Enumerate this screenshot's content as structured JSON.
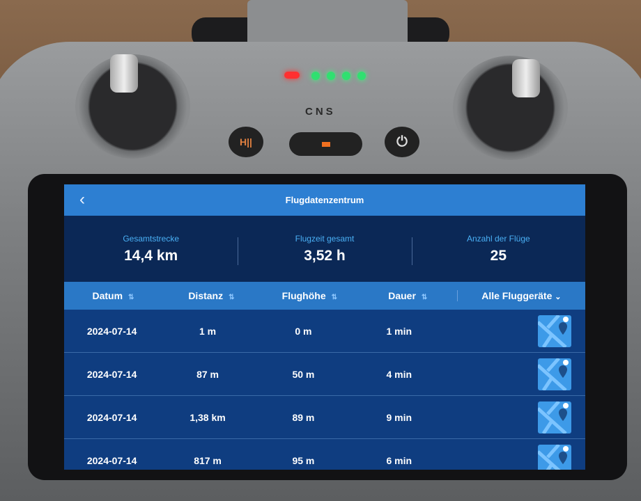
{
  "controller": {
    "mode_labels": "CNS",
    "pause_button_label": "H||",
    "power_icon": "power-icon",
    "status_leds": {
      "red": "#ff3030",
      "green": "#30e070",
      "count_green": 4
    }
  },
  "screen": {
    "title": "Flugdatenzentrum",
    "back_label": "‹",
    "stats": [
      {
        "label": "Gesamtstrecke",
        "value": "14,4 km"
      },
      {
        "label": "Flugzeit gesamt",
        "value": "3,52 h"
      },
      {
        "label": "Anzahl der Flüge",
        "value": "25"
      }
    ],
    "columns": [
      "Datum",
      "Distanz",
      "Flughöhe",
      "Dauer"
    ],
    "sort_icon": "⇅",
    "device_filter": "Alle Fluggeräte",
    "rows": [
      {
        "date": "2024-07-14",
        "distance": "1 m",
        "height": "0 m",
        "duration": "1 min"
      },
      {
        "date": "2024-07-14",
        "distance": "87 m",
        "height": "50 m",
        "duration": "4 min"
      },
      {
        "date": "2024-07-14",
        "distance": "1,38 km",
        "height": "89 m",
        "duration": "9 min"
      },
      {
        "date": "2024-07-14",
        "distance": "817 m",
        "height": "95 m",
        "duration": "6 min"
      }
    ],
    "colors": {
      "title_bar": "#2d7fd2",
      "stats_bg": "#0b2856",
      "header_bg": "#2a78c6",
      "row_bg": "#0f3d80",
      "accent_label": "#4ab0f5"
    }
  }
}
